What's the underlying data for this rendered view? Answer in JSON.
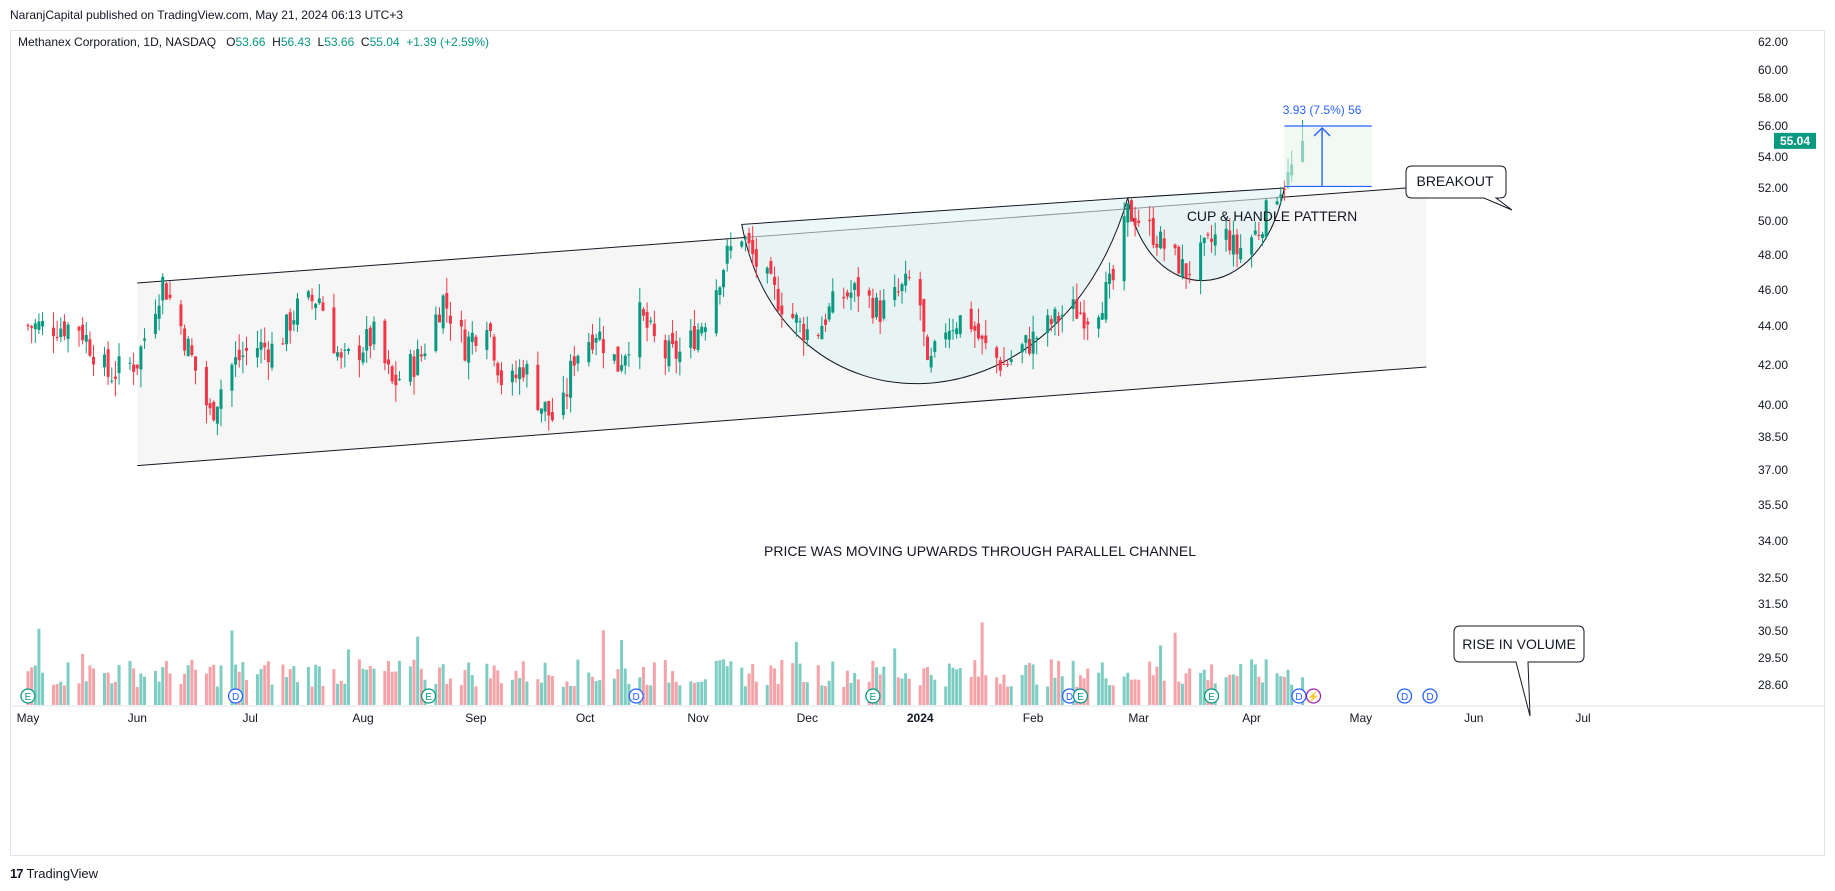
{
  "header": {
    "publisher_line": "NaranjCapital published on TradingView.com, May 21, 2024 06:13 UTC+3"
  },
  "legend": {
    "symbol": "Methanex Corporation, 1D, NASDAQ",
    "o_label": "O",
    "o_value": "53.66",
    "h_label": "H",
    "h_value": "56.43",
    "l_label": "L",
    "l_value": "53.66",
    "c_label": "C",
    "c_value": "55.04",
    "change": "+1.39 (+2.59%)"
  },
  "footer": {
    "logo": "TradingView",
    "logo_mark": "17"
  },
  "colors": {
    "up": "#089981",
    "down": "#f23645",
    "vol_up": "#7ecdc3",
    "vol_down": "#f5a3a8",
    "accent": "#2962ff",
    "price_badge": "#089981"
  },
  "chart_data": {
    "type": "candlestick",
    "ylim": [
      28.0,
      63.0
    ],
    "y_ticks": [
      "62.00",
      "60.00",
      "58.00",
      "56.00",
      "54.00",
      "52.00",
      "50.00",
      "48.00",
      "46.00",
      "44.00",
      "42.00",
      "40.00",
      "38.50",
      "37.00",
      "35.50",
      "34.00",
      "32.50",
      "31.50",
      "30.50",
      "29.50",
      "28.60"
    ],
    "y_tick_values": [
      62.0,
      60.0,
      58.0,
      56.0,
      54.0,
      52.0,
      50.0,
      48.0,
      46.0,
      44.0,
      42.0,
      40.0,
      38.5,
      37.0,
      35.5,
      34.0,
      32.5,
      31.5,
      30.5,
      29.5,
      28.6
    ],
    "x_ticks": [
      "May",
      "Jun",
      "Jul",
      "Aug",
      "Sep",
      "Oct",
      "Nov",
      "Dec",
      "2024",
      "Feb",
      "Mar",
      "Apr",
      "May",
      "Jun",
      "Jul"
    ],
    "current_price": "55.04",
    "annotations": {
      "cup_handle": "CUP & HANDLE PATTERN",
      "breakout": "BREAKOUT",
      "channel": "PRICE WAS MOVING UPWARDS THROUGH PARALLEL CHANNEL",
      "volume": "RISE IN VOLUME",
      "measure": "3.93 (7.5%) 56"
    },
    "event_markers": [
      "E",
      "D",
      "E",
      "D",
      "E",
      "D",
      "E",
      "D",
      "E",
      "D",
      "⚡",
      "D"
    ],
    "close_keypoints": [
      {
        "d": 0,
        "c": 44.0
      },
      {
        "d": 14,
        "c": 44.0
      },
      {
        "d": 22,
        "c": 41.5
      },
      {
        "d": 30,
        "c": 42.2
      },
      {
        "d": 37,
        "c": 46.5
      },
      {
        "d": 42,
        "c": 44.0
      },
      {
        "d": 50,
        "c": 39.5
      },
      {
        "d": 55,
        "c": 41.8
      },
      {
        "d": 62,
        "c": 43.0
      },
      {
        "d": 68,
        "c": 42.8
      },
      {
        "d": 74,
        "c": 45.0
      },
      {
        "d": 80,
        "c": 45.6
      },
      {
        "d": 86,
        "c": 42.0
      },
      {
        "d": 95,
        "c": 43.5
      },
      {
        "d": 100,
        "c": 41.0
      },
      {
        "d": 108,
        "c": 42.5
      },
      {
        "d": 114,
        "c": 45.5
      },
      {
        "d": 120,
        "c": 43.0
      },
      {
        "d": 126,
        "c": 44.5
      },
      {
        "d": 131,
        "c": 40.5
      },
      {
        "d": 136,
        "c": 42.0
      },
      {
        "d": 141,
        "c": 40.0
      },
      {
        "d": 146,
        "c": 39.0
      },
      {
        "d": 150,
        "c": 42.5
      },
      {
        "d": 156,
        "c": 43.8
      },
      {
        "d": 162,
        "c": 42.0
      },
      {
        "d": 168,
        "c": 44.6
      },
      {
        "d": 174,
        "c": 42.5
      },
      {
        "d": 180,
        "c": 42.6
      },
      {
        "d": 186,
        "c": 44.5
      },
      {
        "d": 192,
        "c": 48.0
      },
      {
        "d": 196,
        "c": 49.2
      },
      {
        "d": 200,
        "c": 47.5
      },
      {
        "d": 206,
        "c": 45.5
      },
      {
        "d": 212,
        "c": 44.0
      },
      {
        "d": 216,
        "c": 43.5
      },
      {
        "d": 222,
        "c": 45.5
      },
      {
        "d": 228,
        "c": 46.0
      },
      {
        "d": 234,
        "c": 44.8
      },
      {
        "d": 240,
        "c": 46.0
      },
      {
        "d": 244,
        "c": 47.0
      },
      {
        "d": 247,
        "c": 41.5
      },
      {
        "d": 252,
        "c": 44.0
      },
      {
        "d": 258,
        "c": 44.6
      },
      {
        "d": 262,
        "c": 43.0
      },
      {
        "d": 268,
        "c": 42.0
      },
      {
        "d": 274,
        "c": 43.0
      },
      {
        "d": 280,
        "c": 44.0
      },
      {
        "d": 286,
        "c": 45.0
      },
      {
        "d": 292,
        "c": 44.5
      },
      {
        "d": 298,
        "c": 46.5
      },
      {
        "d": 302,
        "c": 50.5
      },
      {
        "d": 306,
        "c": 50.0
      },
      {
        "d": 312,
        "c": 48.5
      },
      {
        "d": 318,
        "c": 47.0
      },
      {
        "d": 324,
        "c": 48.5
      },
      {
        "d": 328,
        "c": 49.5
      },
      {
        "d": 332,
        "c": 48.2
      },
      {
        "d": 338,
        "c": 49.5
      },
      {
        "d": 342,
        "c": 51.5
      },
      {
        "d": 346,
        "c": 52.7
      },
      {
        "d": 350,
        "c": 55.04
      }
    ],
    "date_ticks_day": [
      0,
      30,
      61,
      92,
      123,
      153,
      184,
      214,
      245,
      276,
      305,
      336,
      366,
      397,
      427
    ],
    "date_range_days": [
      0,
      444
    ]
  }
}
